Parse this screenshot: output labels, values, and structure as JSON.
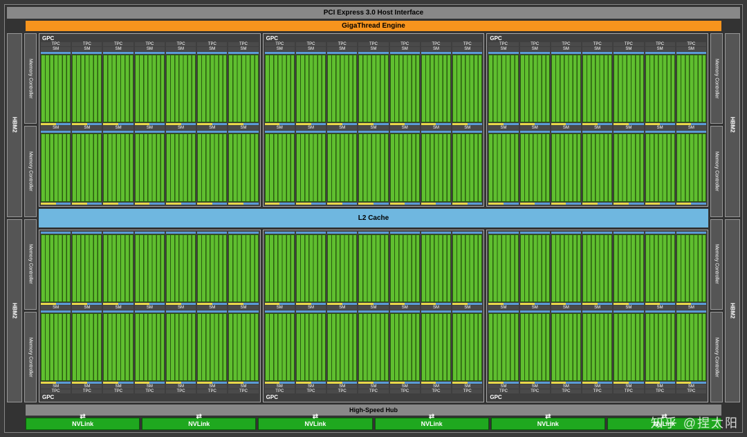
{
  "labels": {
    "pci": "PCI Express 3.0 Host Interface",
    "giga": "GigaThread Engine",
    "l2": "L2 Cache",
    "hub": "High-Speed Hub",
    "gpc": "GPC",
    "tpc": "TPC",
    "sm": "SM",
    "hbm": "HBM2",
    "memctrl": "Memory Controller",
    "nvlink": "NVLink",
    "watermark": "知乎 @捏太阳"
  },
  "structure": {
    "gpc_rows": 2,
    "gpcs_per_row": 3,
    "tpcs_per_gpc": 7,
    "sm_rows_per_gpc": 2,
    "nvlink_count": 6,
    "memctrl_per_side": 4,
    "hbm_per_side": 2
  },
  "colors": {
    "bg": "#3a3a3a",
    "chip": "#333",
    "border": "#888",
    "pci_bg": "#888",
    "giga_bg": "#f7941d",
    "l2_bg": "#6fb7e0",
    "hub_bg": "#888",
    "nvlink_bg": "#1fa81f",
    "hbm_bg": "#555",
    "memctrl_bg": "#555",
    "sm_core": "#5fbf2f",
    "sm_core_dark": "#2a5a0f",
    "sm_blue": "#5b9bd5",
    "sm_yellow": "#e8d84a",
    "gpc_bg": "#3f3f3f"
  }
}
